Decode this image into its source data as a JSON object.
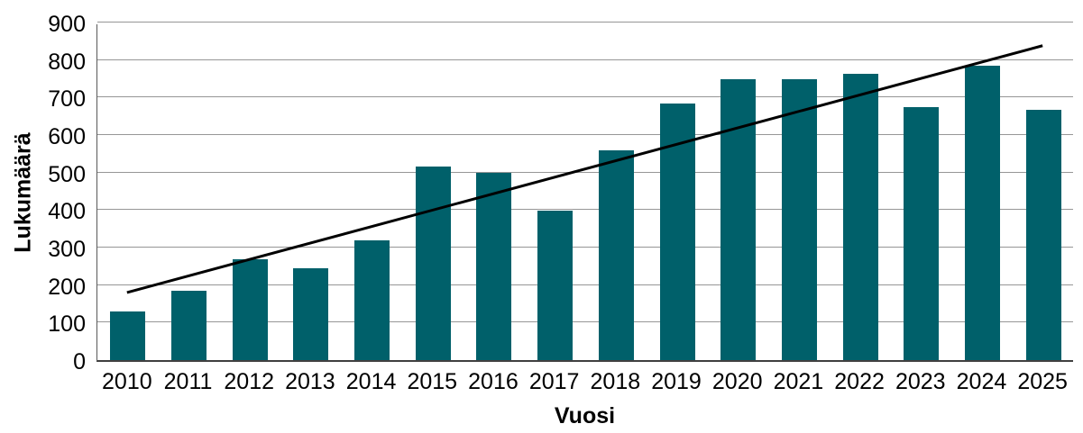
{
  "chart_data": {
    "type": "bar",
    "title": "",
    "xlabel": "Vuosi",
    "ylabel": "Lukumäärä",
    "categories": [
      "2010",
      "2011",
      "2012",
      "2013",
      "2014",
      "2015",
      "2016",
      "2017",
      "2018",
      "2019",
      "2020",
      "2021",
      "2022",
      "2023",
      "2024",
      "2025"
    ],
    "values": [
      130,
      185,
      270,
      245,
      320,
      517,
      500,
      398,
      560,
      685,
      748,
      748,
      763,
      675,
      785,
      668
    ],
    "yticks": [
      0,
      100,
      200,
      300,
      400,
      500,
      600,
      700,
      800,
      900
    ],
    "ylim": [
      0,
      900
    ],
    "grid": "horizontal",
    "legend": "none",
    "bar_color": "#00606A",
    "gridline_color": "#969696",
    "trendline": {
      "type": "linear",
      "start_value": 185,
      "end_value": 843,
      "color": "#000000"
    }
  }
}
